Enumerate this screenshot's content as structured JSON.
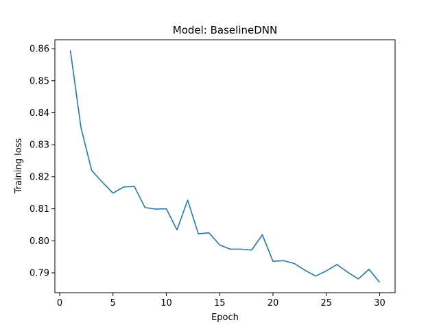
{
  "chart_data": {
    "type": "line",
    "title": "Model: BaselineDNN",
    "xlabel": "Epoch",
    "ylabel": "Training loss",
    "xlim": [
      -0.45,
      31.45
    ],
    "ylim": [
      0.7838,
      0.8628
    ],
    "xticks": [
      0,
      5,
      10,
      15,
      20,
      25,
      30
    ],
    "yticks": [
      0.79,
      0.8,
      0.81,
      0.82,
      0.83,
      0.84,
      0.85,
      0.86
    ],
    "ytick_labels": [
      "0.79",
      "0.80",
      "0.81",
      "0.82",
      "0.83",
      "0.84",
      "0.85",
      "0.86"
    ],
    "grid": false,
    "color": "#1f77b4",
    "x": [
      1,
      2,
      3,
      4,
      5,
      6,
      7,
      8,
      9,
      10,
      11,
      12,
      13,
      14,
      15,
      16,
      17,
      18,
      19,
      20,
      21,
      22,
      23,
      24,
      25,
      26,
      27,
      28,
      29,
      30
    ],
    "series": [
      {
        "values": [
          0.8595,
          0.8353,
          0.822,
          0.8183,
          0.8149,
          0.8168,
          0.817,
          0.8104,
          0.8099,
          0.81,
          0.8034,
          0.8127,
          0.8022,
          0.8025,
          0.7987,
          0.7974,
          0.7974,
          0.7971,
          0.8019,
          0.7936,
          0.7938,
          0.7929,
          0.7908,
          0.789,
          0.7906,
          0.7926,
          0.7902,
          0.7881,
          0.7911,
          0.787
        ]
      }
    ]
  }
}
